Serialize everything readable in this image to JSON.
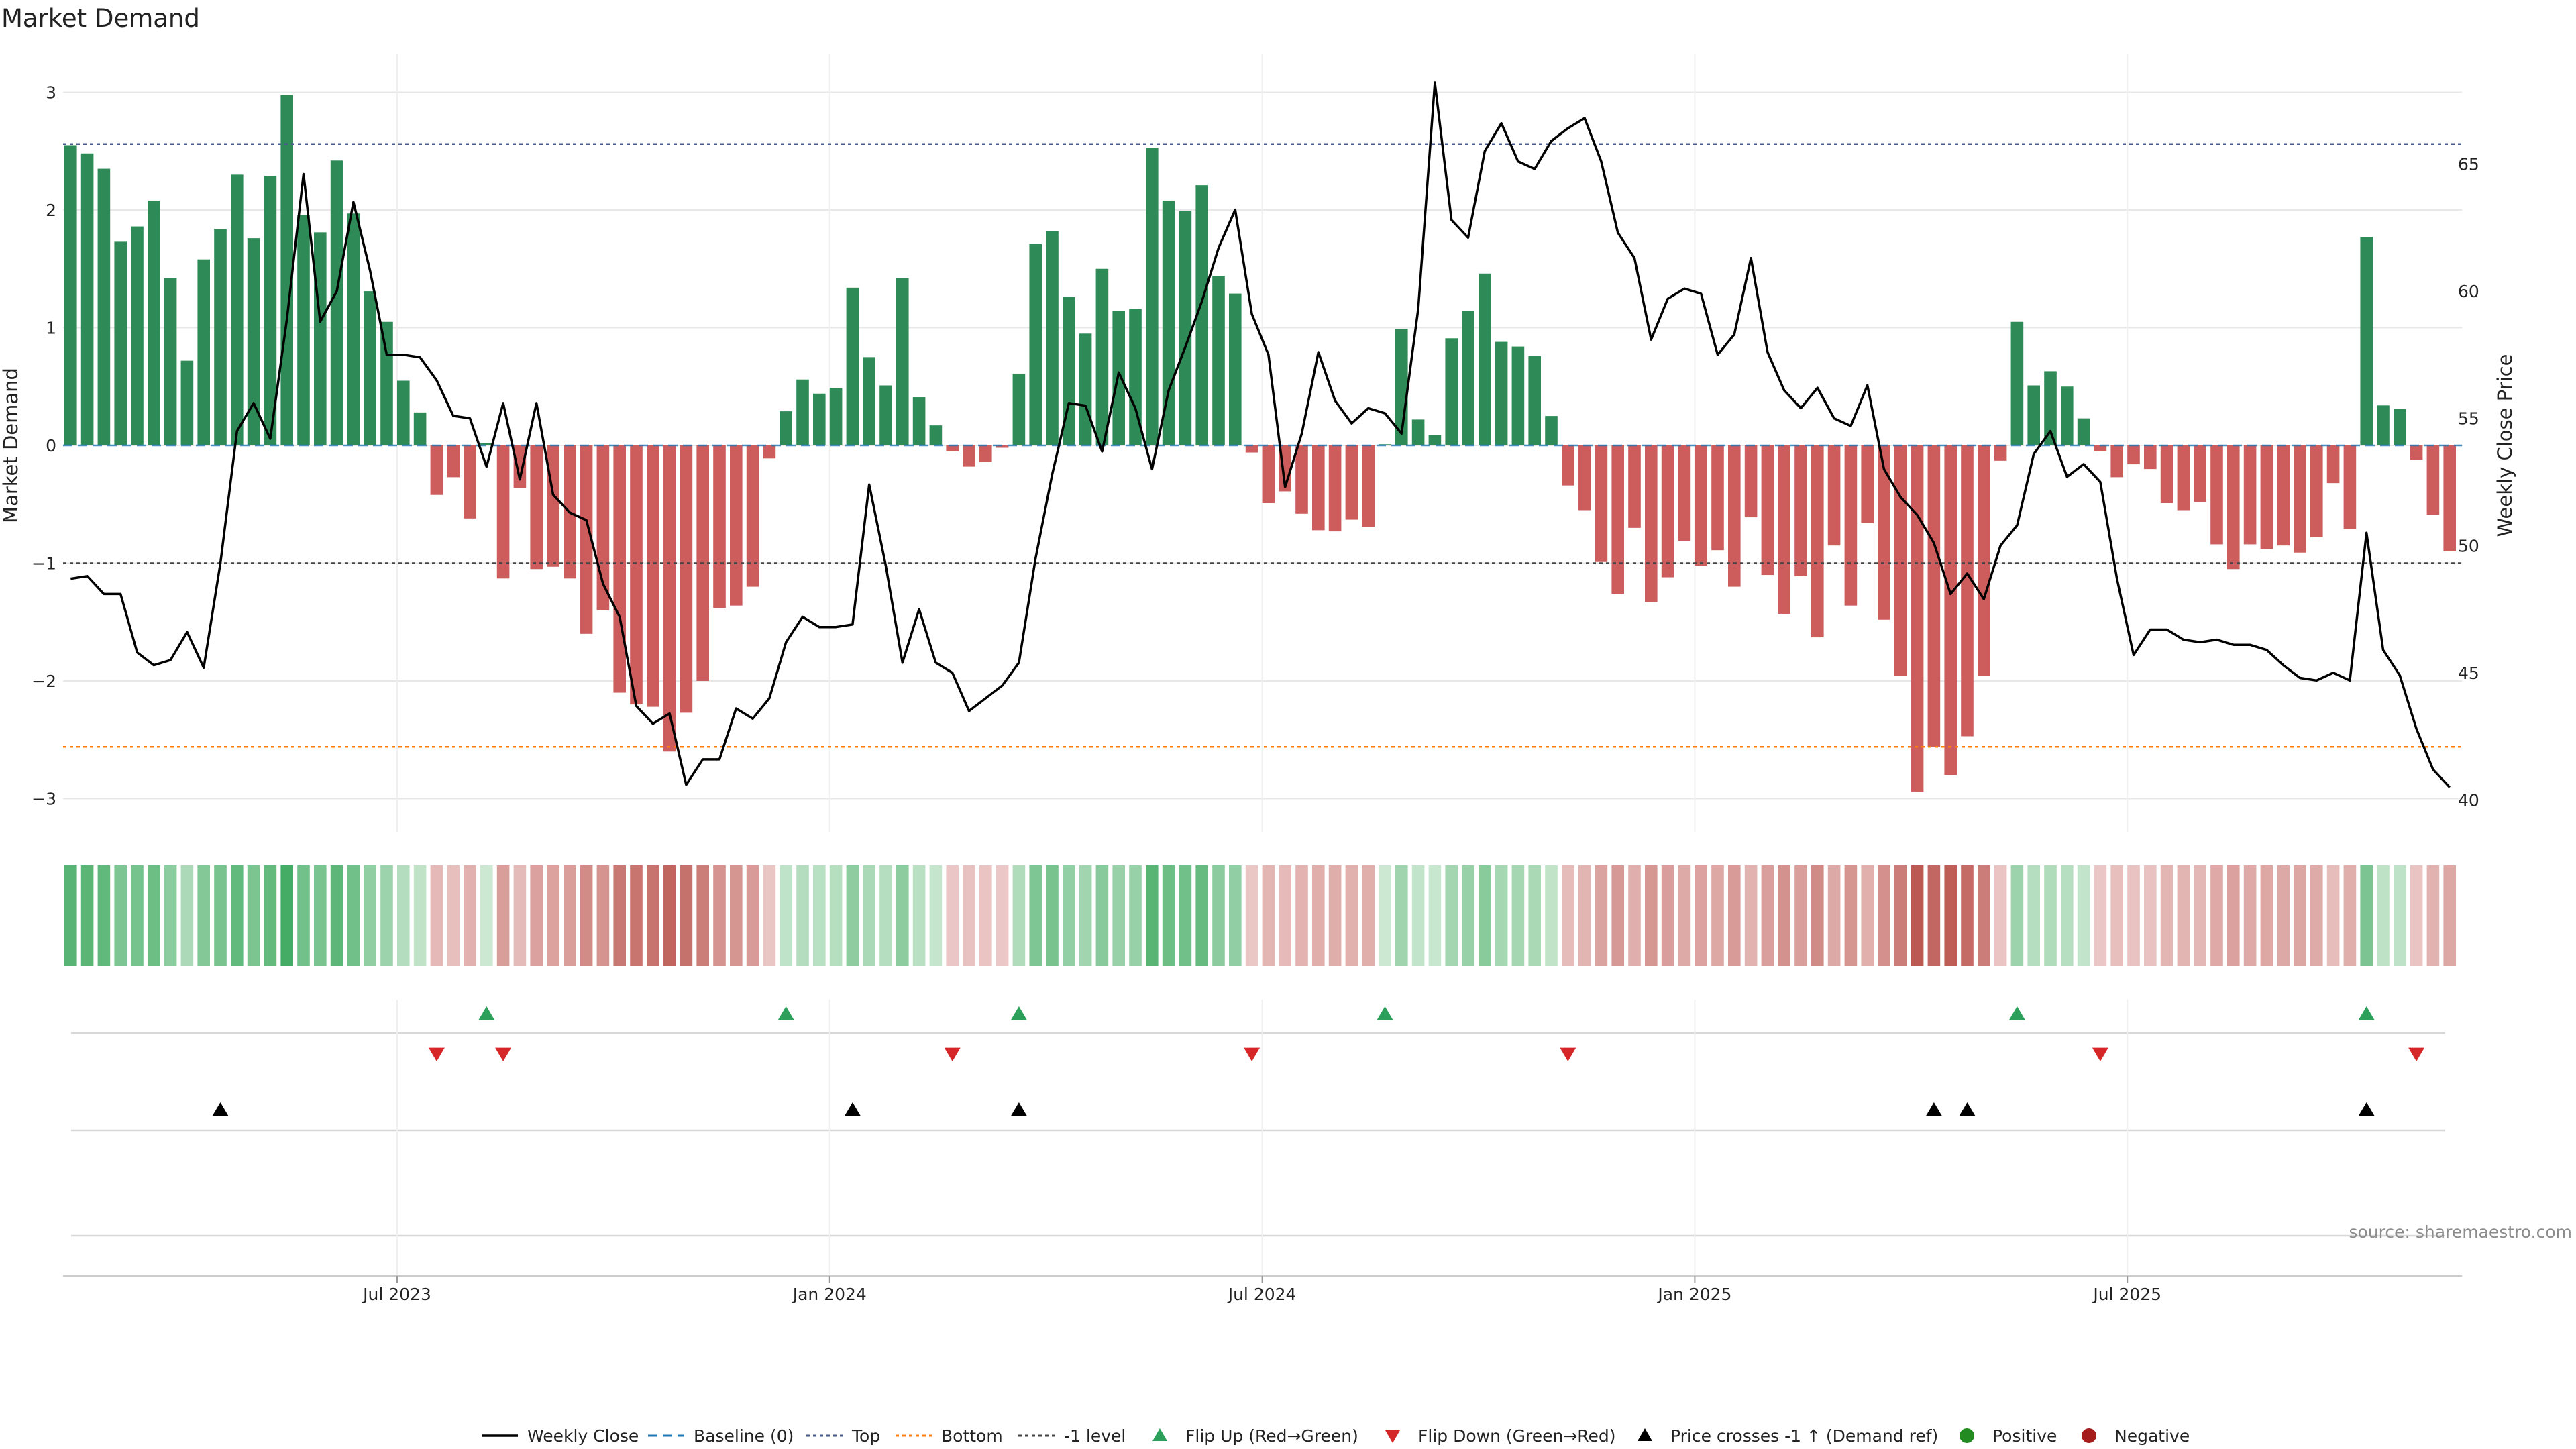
{
  "chart_data": {
    "type": "bar",
    "title": "Market Demand",
    "ylabel_left": "Market Demand",
    "ylabel_right": "Weekly Close Price",
    "ylim_left": [
      -3.3,
      3.2
    ],
    "ylim_right": [
      38.8,
      67.9
    ],
    "yticks_left": [
      3,
      2,
      1,
      0,
      -1,
      -2,
      -3
    ],
    "ytick_labels_left": [
      "3",
      "2",
      "1",
      "0",
      "−1",
      "−2",
      "−3"
    ],
    "yticks_right": [
      65,
      60,
      55,
      50,
      45,
      40
    ],
    "ytick_labels_right": [
      "65",
      "60",
      "55",
      "50",
      "45",
      "40"
    ],
    "x_tick_labels": [
      "Jul 2023",
      "Jan 2024",
      "Jul 2024",
      "Jan 2025",
      "Jul 2025"
    ],
    "x_tick_weeks": [
      20,
      46,
      72,
      98,
      124
    ],
    "reference_lines": {
      "top": 2.56,
      "bottom": -2.56,
      "minus_one": -1.0,
      "baseline": 0
    },
    "series": [
      {
        "name": "Market Demand",
        "values": [
          2.55,
          2.48,
          2.35,
          1.73,
          1.86,
          2.08,
          1.42,
          0.72,
          1.58,
          1.84,
          2.3,
          1.76,
          2.29,
          2.98,
          1.96,
          1.81,
          2.42,
          1.97,
          1.31,
          1.05,
          0.55,
          0.28,
          -0.42,
          -0.27,
          -0.62,
          0.02,
          -1.13,
          -0.36,
          -1.05,
          -1.03,
          -1.13,
          -1.6,
          -1.4,
          -2.1,
          -2.2,
          -2.22,
          -2.6,
          -2.27,
          -2.0,
          -1.38,
          -1.36,
          -1.2,
          -0.11,
          0.29,
          0.56,
          0.44,
          0.49,
          1.34,
          0.75,
          0.51,
          1.42,
          0.41,
          0.17,
          -0.05,
          -0.18,
          -0.14,
          -0.02,
          0.61,
          1.71,
          1.82,
          1.26,
          0.95,
          1.5,
          1.14,
          1.16,
          2.53,
          2.08,
          1.99,
          2.21,
          1.44,
          1.29,
          -0.06,
          -0.49,
          -0.39,
          -0.58,
          -0.72,
          -0.73,
          -0.63,
          -0.69,
          0.01,
          0.99,
          0.22,
          0.09,
          0.91,
          1.14,
          1.46,
          0.88,
          0.84,
          0.76,
          0.25,
          -0.34,
          -0.55,
          -0.99,
          -1.26,
          -0.7,
          -1.33,
          -1.12,
          -0.81,
          -1.02,
          -0.89,
          -1.2,
          -0.61,
          -1.1,
          -1.43,
          -1.11,
          -1.63,
          -0.85,
          -1.36,
          -0.66,
          -1.48,
          -1.96,
          -2.94,
          -2.56,
          -2.8,
          -2.47,
          -1.96,
          -0.13,
          1.05,
          0.51,
          0.63,
          0.5,
          0.23,
          -0.05,
          -0.27,
          -0.16,
          -0.2,
          -0.49,
          -0.55,
          -0.48,
          -0.84,
          -1.05,
          -0.84,
          -0.88,
          -0.85,
          -0.91,
          -0.78,
          -0.32,
          -0.71,
          1.77,
          0.34,
          0.31,
          -0.12,
          -0.59,
          -0.9
        ]
      },
      {
        "name": "Weekly Close",
        "values": [
          48.7,
          48.8,
          48.1,
          48.1,
          45.8,
          45.3,
          45.5,
          46.6,
          45.2,
          49.3,
          54.5,
          55.6,
          54.2,
          58.9,
          64.6,
          58.8,
          60.0,
          63.5,
          60.8,
          57.5,
          57.5,
          57.4,
          56.5,
          55.1,
          55.0,
          53.1,
          55.6,
          52.6,
          55.6,
          52.0,
          51.3,
          51.0,
          48.5,
          47.2,
          43.7,
          43.0,
          43.4,
          40.6,
          41.6,
          41.6,
          43.6,
          43.2,
          44.0,
          46.2,
          47.2,
          46.8,
          46.8,
          46.9,
          52.4,
          49.2,
          45.4,
          47.5,
          45.4,
          45.0,
          43.5,
          44.0,
          44.5,
          45.4,
          49.5,
          52.8,
          55.6,
          55.5,
          53.7,
          56.8,
          55.4,
          53.0,
          56.1,
          57.8,
          59.6,
          61.7,
          63.2,
          59.1,
          57.5,
          52.3,
          54.4,
          57.6,
          55.7,
          54.8,
          55.4,
          55.2,
          54.4,
          59.3,
          68.2,
          62.8,
          62.1,
          65.5,
          66.6,
          65.1,
          64.8,
          65.9,
          66.4,
          66.8,
          65.1,
          62.3,
          61.3,
          58.1,
          59.7,
          60.1,
          59.9,
          57.5,
          58.3,
          61.3,
          57.6,
          56.1,
          55.4,
          56.2,
          55.0,
          54.7,
          56.3,
          53.0,
          51.9,
          51.2,
          50.1,
          48.1,
          48.9,
          47.9,
          50.0,
          50.8,
          53.6,
          54.5,
          52.7,
          53.2,
          52.5,
          48.7,
          45.7,
          46.7,
          46.7,
          46.3,
          46.2,
          46.3,
          46.1,
          46.1,
          45.9,
          45.3,
          44.8,
          44.7,
          45.0,
          44.7,
          50.5,
          45.9,
          44.9,
          42.8,
          41.2,
          40.5
        ]
      }
    ],
    "flip_up_weeks": [
      25,
      43,
      57,
      79,
      117,
      138
    ],
    "flip_down_weeks": [
      22,
      26,
      53,
      71,
      90,
      122,
      141
    ],
    "price_cross_weeks": [
      9,
      47,
      57,
      112,
      114,
      138
    ],
    "legend": [
      {
        "label": "Weekly Close",
        "kind": "line",
        "color": "#000000"
      },
      {
        "label": "Baseline (0)",
        "kind": "dash",
        "color": "#1f77b4"
      },
      {
        "label": "Top",
        "kind": "dotted",
        "color": "#4a5a8a"
      },
      {
        "label": "Bottom",
        "kind": "dotted",
        "color": "#ff7f0e"
      },
      {
        "label": "-1 level",
        "kind": "dotted",
        "color": "#444444"
      },
      {
        "label": "Flip Up (Red→Green)",
        "kind": "tri-up",
        "color": "#2ca05a"
      },
      {
        "label": "Flip Down (Green→Red)",
        "kind": "tri-down",
        "color": "#d62728"
      },
      {
        "label": "Price crosses -1 ↑ (Demand ref)",
        "kind": "tri-up",
        "color": "#000000"
      },
      {
        "label": "Positive",
        "kind": "dot",
        "color": "#228b22"
      },
      {
        "label": "Negative",
        "kind": "dot",
        "color": "#a41c1c"
      }
    ],
    "source": "source: sharemaestro.com",
    "colors": {
      "positive": "#2e8b57",
      "negative": "#cd5c5c",
      "price": "#000000",
      "top": "#4a5a8a",
      "bottom": "#ff7f0e",
      "minus_one": "#444444",
      "baseline": "#1f77b4",
      "flip_up": "#2ca05a",
      "flip_down": "#d62728",
      "cross": "#000000",
      "grid": "#e8e8e8"
    }
  }
}
